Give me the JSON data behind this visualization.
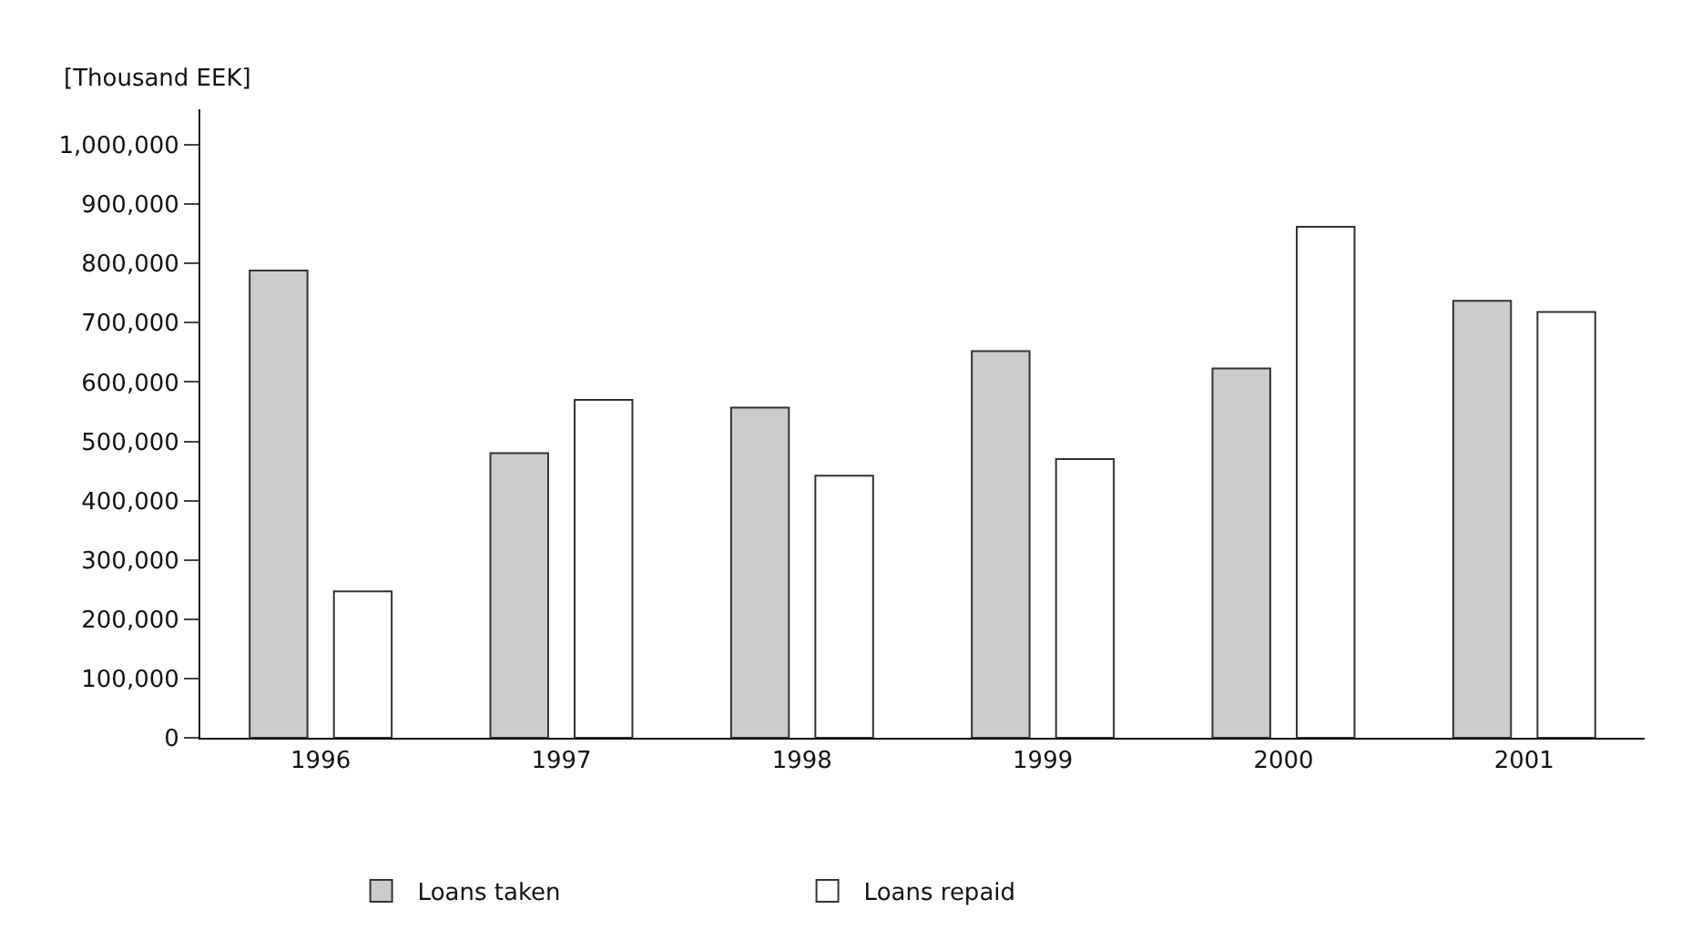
{
  "chart_data": {
    "type": "bar",
    "ylabel": "[Thousand EEK]",
    "categories": [
      "1996",
      "1997",
      "1998",
      "1999",
      "2000",
      "2001"
    ],
    "series": [
      {
        "name": "Loans taken",
        "color": "#cccccc",
        "values": [
          788000,
          480000,
          557000,
          652000,
          623000,
          737000
        ]
      },
      {
        "name": "Loans repaid",
        "color": "#ffffff",
        "values": [
          247000,
          570000,
          442000,
          470000,
          862000,
          718000
        ]
      }
    ],
    "ylim": [
      0,
      1060000
    ],
    "yticks": [
      {
        "value": 0,
        "label": "0"
      },
      {
        "value": 100000,
        "label": "100,000"
      },
      {
        "value": 200000,
        "label": "200,000"
      },
      {
        "value": 300000,
        "label": "300,000"
      },
      {
        "value": 400000,
        "label": "400,000"
      },
      {
        "value": 500000,
        "label": "500,000"
      },
      {
        "value": 600000,
        "label": "600,000"
      },
      {
        "value": 700000,
        "label": "700,000"
      },
      {
        "value": 800000,
        "label": "800,000"
      },
      {
        "value": 900000,
        "label": "900,000"
      },
      {
        "value": 1000000,
        "label": "1,000,000"
      }
    ],
    "legend": "bottom"
  }
}
